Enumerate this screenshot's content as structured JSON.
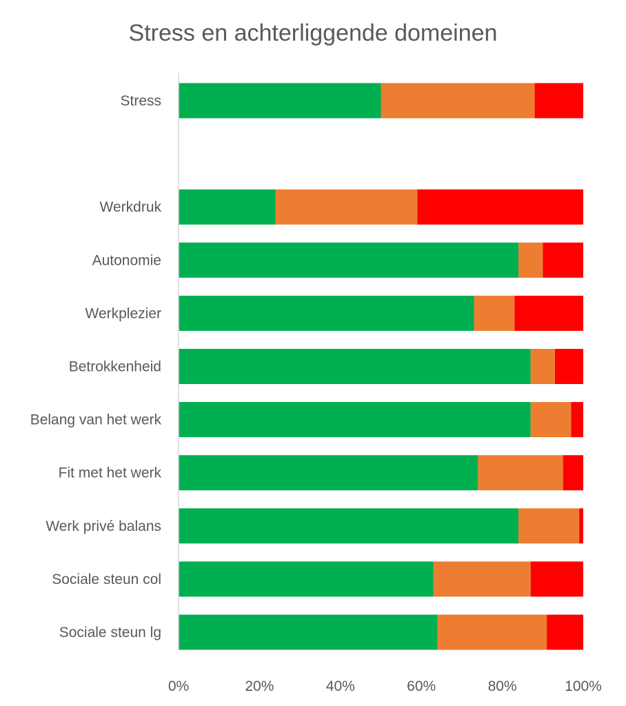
{
  "chart_data": {
    "type": "bar",
    "orientation": "horizontal",
    "stacked": "percent",
    "title": "Stress en achterliggende domeinen",
    "xlabel": "",
    "ylabel": "",
    "xlim": [
      0,
      100
    ],
    "x_ticks": [
      "0%",
      "20%",
      "40%",
      "60%",
      "80%",
      "100%"
    ],
    "x_tick_values": [
      0,
      20,
      40,
      60,
      80,
      100
    ],
    "grid": false,
    "legend": "none",
    "categories": [
      "Stress",
      "",
      "Werkdruk",
      "Autonomie",
      "Werkplezier",
      "Betrokkenheid",
      "Belang van het werk",
      "Fit met het werk",
      "Werk privé balans",
      "Sociale steun col",
      "Sociale steun lg"
    ],
    "series": [
      {
        "color": "#00b050",
        "values": [
          50,
          null,
          24,
          84,
          73,
          87,
          87,
          74,
          84,
          63,
          64
        ]
      },
      {
        "color": "#ed7d31",
        "values": [
          38,
          null,
          35,
          6,
          10,
          6,
          10,
          21,
          15,
          24,
          27
        ]
      },
      {
        "color": "#ff0000",
        "values": [
          12,
          null,
          41,
          10,
          17,
          7,
          3,
          5,
          1,
          13,
          9
        ]
      }
    ]
  }
}
